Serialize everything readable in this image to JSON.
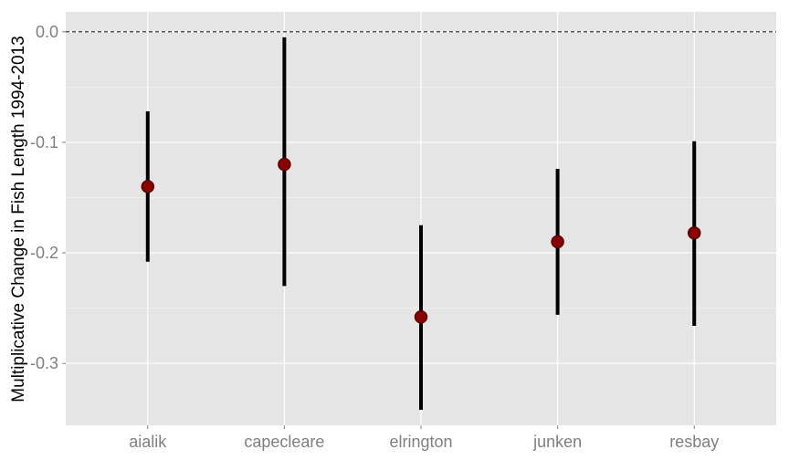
{
  "chart_data": {
    "type": "pointrange",
    "title": "",
    "xlabel": "",
    "ylabel": "Multiplicative Change in Fish Length 1994-2013",
    "categories": [
      "aialik",
      "capecleare",
      "elrington",
      "junken",
      "resbay"
    ],
    "values": [
      -0.14,
      -0.12,
      -0.258,
      -0.19,
      -0.182
    ],
    "lower": [
      -0.208,
      -0.23,
      -0.342,
      -0.256,
      -0.266
    ],
    "upper": [
      -0.072,
      -0.005,
      -0.175,
      -0.124,
      -0.099
    ],
    "ylim": [
      -0.356,
      0.018
    ],
    "yticks": [
      0.0,
      -0.1,
      -0.2,
      -0.3
    ],
    "ytick_labels": [
      "0.0",
      "-0.1",
      "-0.2",
      "-0.3"
    ],
    "reference_line": 0.0,
    "grid": true,
    "colors": {
      "panel_background": "#e5e5e5",
      "grid_major": "#ffffff",
      "grid_minor": "#f2f2f2",
      "point_fill": "#8b0000",
      "point_stroke": "#5a0000",
      "errorbar": "#000000",
      "reference_line": "#555555"
    }
  }
}
